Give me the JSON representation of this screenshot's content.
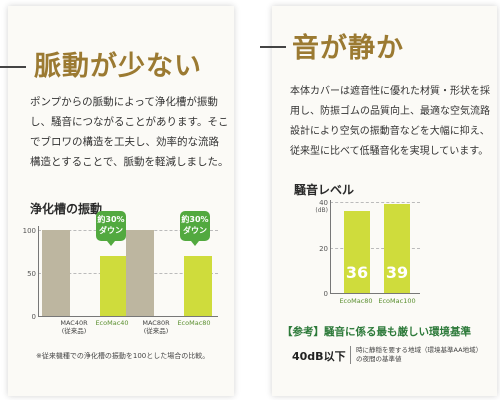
{
  "left": {
    "title": "脈動が少ない",
    "body": [
      "ポンプからの脈動によって浄化槽が振動",
      "し、騒音につながることがあります。そこ",
      "でブロワの構造を工夫し、効率的な流路",
      "構造とすることで、脈動を軽減しました。"
    ],
    "chart_title": "浄化槽の振動",
    "badge_line1": "約30%",
    "badge_line2": "ダウン",
    "note": "※従来機種での浄化槽の振動を100とした場合の比較。"
  },
  "right": {
    "title": "音が静か",
    "body": [
      "本体カバーは遮音性に優れた材質・形状を採",
      "用し、防振ゴムの品質向上、最適な空気流路",
      "設計により空気の振動音などを大幅に抑え、",
      "従来型に比べて低騒音化を実現しています。"
    ],
    "chart_title": "騒音レベル",
    "unit": "(dB)",
    "standard_title": "【参考】騒音に係る最も厳しい環境基準",
    "standard_value": "40dB以下",
    "standard_desc": [
      "時に静穏を要する地域（環境基準AA地域）",
      "の夜間の基準値"
    ]
  },
  "colors": {
    "old_bar": "#bdb6a0",
    "new_bar": "#cfdc3c",
    "accent": "#9b7a32",
    "badge": "#52a93f"
  },
  "chart_data": [
    {
      "type": "bar",
      "title": "浄化槽の振動",
      "categories": [
        "MAC40R\n(従来品)",
        "EcoMac40",
        "MAC80R\n(従来品)",
        "EcoMac80"
      ],
      "values": [
        100,
        70,
        100,
        70
      ],
      "ylim": [
        0,
        100
      ],
      "yticks": [
        0,
        50,
        100
      ]
    },
    {
      "type": "bar",
      "title": "騒音レベル",
      "categories": [
        "EcoMac80",
        "EcoMac100"
      ],
      "values": [
        36,
        39
      ],
      "ylim": [
        0,
        40
      ],
      "yticks": [
        0,
        20,
        40
      ],
      "ylabel": "(dB)"
    }
  ]
}
